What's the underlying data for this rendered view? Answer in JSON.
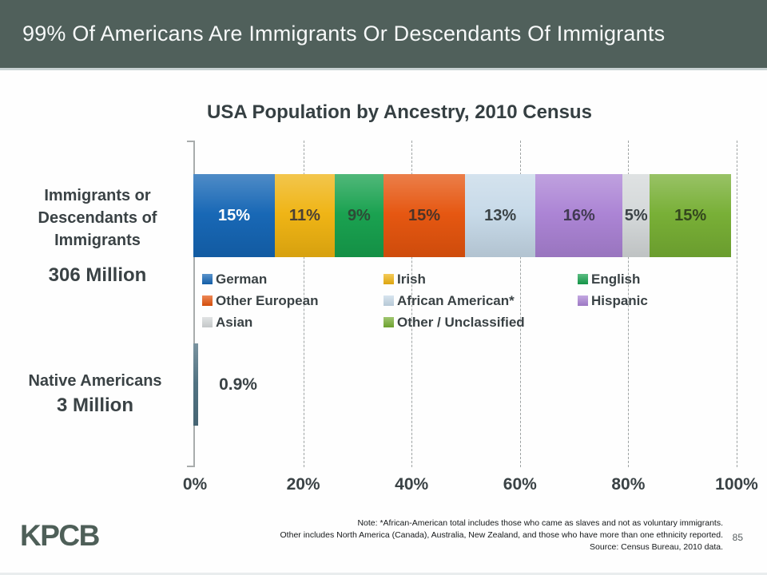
{
  "header": {
    "title": "99% Of Americans Are Immigrants Or Descendants Of Immigrants",
    "bg_color": "#50605b"
  },
  "chart_data": {
    "type": "bar",
    "subtype": "horizontal-stacked",
    "title": "USA Population by Ancestry, 2010 Census",
    "xlim": [
      0,
      100
    ],
    "x_ticks": [
      "0%",
      "20%",
      "40%",
      "60%",
      "80%",
      "100%"
    ],
    "grid": "dashed-vertical",
    "rows": [
      {
        "label_lines": [
          "Immigrants or",
          "Descendants of",
          "Immigrants"
        ],
        "total_label": "306 Million",
        "segments": [
          {
            "name": "German",
            "value": 15,
            "label": "15%",
            "color": "#1465b4",
            "text_color": "#ffffff"
          },
          {
            "name": "Irish",
            "value": 11,
            "label": "11%",
            "color": "#efb311",
            "text_color": "#4a4034"
          },
          {
            "name": "English",
            "value": 9,
            "label": "9%",
            "color": "#16a04d",
            "text_color": "#2e4a36"
          },
          {
            "name": "Other European",
            "value": 15,
            "label": "15%",
            "color": "#e5540d",
            "text_color": "#4c3327"
          },
          {
            "name": "African American*",
            "value": 13,
            "label": "13%",
            "color": "#c6d9e8",
            "text_color": "#3a4245"
          },
          {
            "name": "Hispanic",
            "value": 16,
            "label": "16%",
            "color": "#aa82d4",
            "text_color": "#413a52"
          },
          {
            "name": "Asian",
            "value": 5,
            "label": "5%",
            "color": "#d4d8d9",
            "text_color": "#3a4245"
          },
          {
            "name": "Other / Unclassified",
            "value": 15,
            "label": "15%",
            "color": "#76ae33",
            "text_color": "#33461d"
          }
        ]
      },
      {
        "label_lines": [
          "Native Americans"
        ],
        "total_label": "3 Million",
        "segments": [
          {
            "name": "Native Americans",
            "value": 0.9,
            "label": "0.9%",
            "color": "#4e7080",
            "text_color": "#3a4245",
            "label_outside": true
          }
        ]
      }
    ],
    "legend": [
      {
        "label": "German",
        "color": "#1465b4"
      },
      {
        "label": "Irish",
        "color": "#efb311"
      },
      {
        "label": "English",
        "color": "#16a04d"
      },
      {
        "label": "Other European",
        "color": "#e5540d"
      },
      {
        "label": "African American*",
        "color": "#c6d9e8"
      },
      {
        "label": "Hispanic",
        "color": "#aa82d4"
      },
      {
        "label": "Asian",
        "color": "#d4d8d9"
      },
      {
        "label": "Other / Unclassified",
        "color": "#76ae33"
      }
    ],
    "legend_position": "below-bar"
  },
  "footer": {
    "notes": [
      "Note: *African-American total includes those who came as slaves and not as voluntary immigrants.",
      "Other includes North America (Canada), Australia, New Zealand, and those who have more than one ethnicity reported.",
      "Source: Census Bureau, 2010 data."
    ],
    "page_number": "85",
    "logo": "KPCB"
  }
}
